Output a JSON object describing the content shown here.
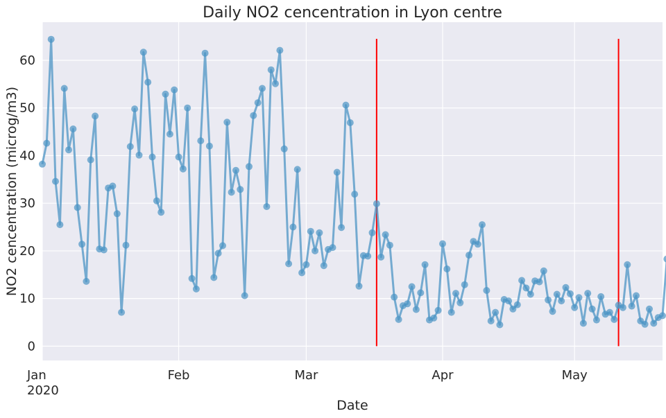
{
  "chart_data": {
    "type": "line",
    "title": "Daily NO2 cencentration in Lyon centre",
    "xlabel": "Date",
    "ylabel": "NO2 cencentration (microg/m3)",
    "x_start": "2020-01-01",
    "xlim": [
      "2020-01-01",
      "2020-05-21"
    ],
    "ylim": [
      -3,
      68
    ],
    "y_ticks": [
      0,
      10,
      20,
      30,
      40,
      50,
      60
    ],
    "x_ticks": [
      {
        "date": "2020-01-01",
        "label": "Jan",
        "sublabel": "2020"
      },
      {
        "date": "2020-02-01",
        "label": "Feb",
        "sublabel": ""
      },
      {
        "date": "2020-03-01",
        "label": "Mar",
        "sublabel": ""
      },
      {
        "date": "2020-04-01",
        "label": "Apr",
        "sublabel": ""
      },
      {
        "date": "2020-05-01",
        "label": "May",
        "sublabel": ""
      }
    ],
    "grid": true,
    "series": [
      {
        "color": "#4c94c4",
        "values": [
          38.2,
          42.6,
          64.4,
          34.6,
          25.5,
          54.1,
          41.2,
          45.6,
          29.1,
          21.4,
          13.6,
          39.1,
          48.3,
          20.4,
          20.2,
          33.2,
          33.6,
          27.8,
          7.1,
          21.2,
          41.9,
          49.8,
          40.1,
          61.7,
          55.4,
          39.7,
          30.5,
          28.1,
          52.9,
          44.5,
          53.8,
          39.7,
          37.2,
          50.0,
          14.2,
          12.0,
          43.1,
          61.5,
          42.0,
          14.4,
          19.5,
          21.1,
          47.0,
          32.3,
          36.9,
          32.9,
          10.6,
          37.7,
          48.4,
          51.1,
          54.1,
          29.3,
          58.0,
          55.1,
          62.1,
          41.4,
          17.3,
          25.0,
          37.1,
          15.4,
          17.1,
          24.1,
          20.0,
          23.8,
          16.9,
          20.3,
          20.7,
          36.5,
          24.9,
          50.6,
          46.9,
          31.9,
          12.6,
          19.0,
          18.9,
          23.8,
          29.9,
          18.7,
          23.4,
          21.2,
          10.3,
          5.6,
          8.5,
          8.9,
          12.5,
          7.7,
          11.2,
          17.1,
          5.5,
          5.9,
          7.5,
          21.5,
          16.2,
          7.1,
          11.1,
          9.1,
          12.9,
          19.1,
          22.0,
          21.4,
          25.5,
          11.7,
          5.3,
          7.1,
          4.5,
          9.8,
          9.5,
          7.8,
          8.7,
          13.8,
          12.2,
          10.9,
          13.7,
          13.5,
          15.8,
          9.7,
          7.3,
          10.9,
          9.5,
          12.3,
          11.0,
          8.1,
          10.2,
          4.8,
          11.1,
          7.8,
          5.5,
          10.4,
          6.7,
          7.1,
          5.6,
          8.6,
          8.1,
          17.1,
          8.4,
          10.6,
          5.3,
          4.6,
          7.8,
          4.8,
          6.0,
          6.4,
          18.3
        ]
      }
    ],
    "vlines": [
      {
        "date": "2020-03-17",
        "color": "#ff0000",
        "ymin": 0,
        "ymax": 64.5
      },
      {
        "date": "2020-05-11",
        "color": "#ff0000",
        "ymin": 0,
        "ymax": 64.5
      }
    ]
  }
}
